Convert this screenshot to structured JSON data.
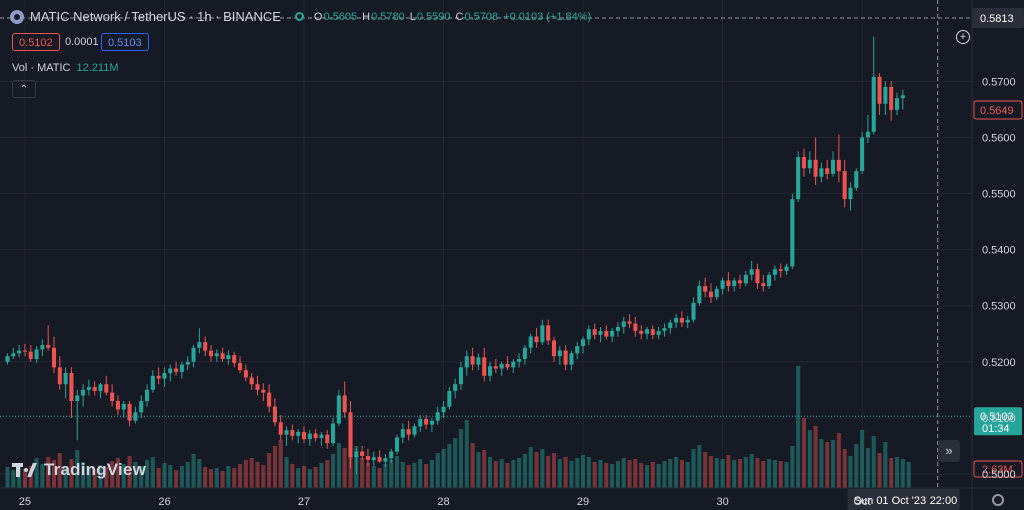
{
  "header": {
    "title": "MATIC Network / TetherUS · 1h · BINANCE",
    "ohlc": [
      {
        "label": "O",
        "value": "0.5605"
      },
      {
        "label": "H",
        "value": "0.5780"
      },
      {
        "label": "L",
        "value": "0.5590"
      },
      {
        "label": "C",
        "value": "0.5708"
      }
    ],
    "change": "+0.0103 (+1.84%)"
  },
  "trade": {
    "sell": "0.5102",
    "spread": "0.0001",
    "buy": "0.5103"
  },
  "volume": {
    "label": "Vol · MATIC",
    "value": "12.211M"
  },
  "collapse_icon": "chevron-up-icon",
  "brand": "TradingView",
  "chart_data": {
    "type": "candlestick",
    "symbol": "MATICUSDT",
    "interval": "1h",
    "exchange": "BINANCE",
    "ylim": [
      0.4975,
      0.5845
    ],
    "y_ticks": [
      "0.5000",
      "0.5100",
      "0.5200",
      "0.5300",
      "0.5400",
      "0.5500",
      "0.5600",
      "0.5700"
    ],
    "x_ticks": [
      {
        "label": "25",
        "hour": 3
      },
      {
        "label": "26",
        "hour": 27
      },
      {
        "label": "27",
        "hour": 51
      },
      {
        "label": "28",
        "hour": 75
      },
      {
        "label": "29",
        "hour": 99
      },
      {
        "label": "30",
        "hour": 123
      },
      {
        "label": "Oct",
        "hour": 147
      }
    ],
    "hours_shown": 166,
    "crosshair": {
      "price": "0.5813",
      "price_value": 0.5813,
      "time_label": "Sun 01 Oct '23",
      "time_hour": "22:00",
      "hour_index": 160
    },
    "last_price": {
      "label": "0.5649",
      "value": 0.5649
    },
    "current_price": {
      "label": "0.5103",
      "countdown": "01:34",
      "value": 0.5103
    },
    "volume_last": "2.63M",
    "volume_max": 12.2,
    "colors": {
      "up": "#26a69a",
      "down": "#ef5350",
      "bg": "#161a25",
      "grid": "#232632",
      "text": "#d1d4dc"
    },
    "ohlc": [
      [
        0.52,
        0.5215,
        0.5195,
        0.521
      ],
      [
        0.521,
        0.5225,
        0.5205,
        0.5215
      ],
      [
        0.5215,
        0.523,
        0.5208,
        0.522
      ],
      [
        0.522,
        0.5232,
        0.521,
        0.5218
      ],
      [
        0.5218,
        0.523,
        0.52,
        0.5205
      ],
      [
        0.5205,
        0.5228,
        0.5198,
        0.5222
      ],
      [
        0.5222,
        0.524,
        0.521,
        0.523
      ],
      [
        0.523,
        0.5265,
        0.522,
        0.5225
      ],
      [
        0.5225,
        0.5245,
        0.518,
        0.519
      ],
      [
        0.519,
        0.521,
        0.515,
        0.516
      ],
      [
        0.516,
        0.519,
        0.5135,
        0.518
      ],
      [
        0.518,
        0.519,
        0.51,
        0.513
      ],
      [
        0.513,
        0.515,
        0.506,
        0.514
      ],
      [
        0.514,
        0.516,
        0.512,
        0.515
      ],
      [
        0.515,
        0.5168,
        0.514,
        0.5155
      ],
      [
        0.5155,
        0.5165,
        0.514,
        0.5148
      ],
      [
        0.5148,
        0.5162,
        0.5135,
        0.516
      ],
      [
        0.516,
        0.5175,
        0.514,
        0.5145
      ],
      [
        0.5145,
        0.516,
        0.512,
        0.513
      ],
      [
        0.513,
        0.514,
        0.5105,
        0.5115
      ],
      [
        0.5115,
        0.513,
        0.51,
        0.5125
      ],
      [
        0.5125,
        0.513,
        0.5085,
        0.5095
      ],
      [
        0.5095,
        0.512,
        0.509,
        0.511
      ],
      [
        0.511,
        0.514,
        0.51,
        0.513
      ],
      [
        0.513,
        0.516,
        0.512,
        0.515
      ],
      [
        0.515,
        0.5185,
        0.5145,
        0.5175
      ],
      [
        0.5175,
        0.519,
        0.516,
        0.517
      ],
      [
        0.517,
        0.519,
        0.5155,
        0.518
      ],
      [
        0.518,
        0.5195,
        0.5165,
        0.5188
      ],
      [
        0.5188,
        0.52,
        0.5175,
        0.5182
      ],
      [
        0.5182,
        0.52,
        0.517,
        0.5195
      ],
      [
        0.5195,
        0.521,
        0.5185,
        0.52
      ],
      [
        0.52,
        0.523,
        0.519,
        0.5225
      ],
      [
        0.5225,
        0.526,
        0.5215,
        0.5235
      ],
      [
        0.5235,
        0.5245,
        0.521,
        0.522
      ],
      [
        0.522,
        0.523,
        0.52,
        0.521
      ],
      [
        0.521,
        0.5222,
        0.52,
        0.5215
      ],
      [
        0.5215,
        0.5225,
        0.52,
        0.5205
      ],
      [
        0.5205,
        0.522,
        0.5195,
        0.5212
      ],
      [
        0.5212,
        0.5218,
        0.519,
        0.5198
      ],
      [
        0.5198,
        0.521,
        0.518,
        0.5185
      ],
      [
        0.5185,
        0.5195,
        0.5165,
        0.5172
      ],
      [
        0.5172,
        0.518,
        0.515,
        0.516
      ],
      [
        0.516,
        0.5175,
        0.514,
        0.515
      ],
      [
        0.515,
        0.5162,
        0.513,
        0.5145
      ],
      [
        0.5145,
        0.516,
        0.511,
        0.512
      ],
      [
        0.512,
        0.5135,
        0.5085,
        0.5092
      ],
      [
        0.5092,
        0.5105,
        0.506,
        0.507
      ],
      [
        0.507,
        0.5085,
        0.505,
        0.5078
      ],
      [
        0.5078,
        0.5088,
        0.506,
        0.5068
      ],
      [
        0.5068,
        0.508,
        0.5055,
        0.5075
      ],
      [
        0.5075,
        0.5085,
        0.5055,
        0.5062
      ],
      [
        0.5062,
        0.5078,
        0.505,
        0.5072
      ],
      [
        0.5072,
        0.508,
        0.5058,
        0.5064
      ],
      [
        0.5064,
        0.5075,
        0.505,
        0.507
      ],
      [
        0.507,
        0.5078,
        0.5045,
        0.5055
      ],
      [
        0.5055,
        0.51,
        0.505,
        0.509
      ],
      [
        0.509,
        0.515,
        0.5085,
        0.514
      ],
      [
        0.514,
        0.5165,
        0.51,
        0.511
      ],
      [
        0.511,
        0.513,
        0.501,
        0.503
      ],
      [
        0.503,
        0.5045,
        0.5,
        0.504
      ],
      [
        0.504,
        0.505,
        0.5025,
        0.5032
      ],
      [
        0.5032,
        0.5045,
        0.5015,
        0.5025
      ],
      [
        0.5025,
        0.504,
        0.5015,
        0.503
      ],
      [
        0.503,
        0.5042,
        0.502,
        0.5022
      ],
      [
        0.5022,
        0.5035,
        0.5012,
        0.5028
      ],
      [
        0.5028,
        0.5045,
        0.502,
        0.504
      ],
      [
        0.504,
        0.507,
        0.5035,
        0.5065
      ],
      [
        0.5065,
        0.509,
        0.5055,
        0.508
      ],
      [
        0.508,
        0.5095,
        0.506,
        0.507
      ],
      [
        0.507,
        0.509,
        0.5065,
        0.5085
      ],
      [
        0.5085,
        0.5105,
        0.5075,
        0.5098
      ],
      [
        0.5098,
        0.5105,
        0.508,
        0.5088
      ],
      [
        0.5088,
        0.51,
        0.5075,
        0.5095
      ],
      [
        0.5095,
        0.512,
        0.5088,
        0.511
      ],
      [
        0.511,
        0.513,
        0.51,
        0.512
      ],
      [
        0.512,
        0.5155,
        0.5115,
        0.5148
      ],
      [
        0.5148,
        0.517,
        0.5135,
        0.516
      ],
      [
        0.516,
        0.52,
        0.515,
        0.519
      ],
      [
        0.519,
        0.522,
        0.5175,
        0.521
      ],
      [
        0.521,
        0.5225,
        0.5185,
        0.5195
      ],
      [
        0.5195,
        0.5215,
        0.5185,
        0.5208
      ],
      [
        0.5208,
        0.5225,
        0.5165,
        0.5175
      ],
      [
        0.5175,
        0.52,
        0.5165,
        0.5192
      ],
      [
        0.5192,
        0.5205,
        0.518,
        0.5188
      ],
      [
        0.5188,
        0.52,
        0.5175,
        0.5196
      ],
      [
        0.5196,
        0.521,
        0.5185,
        0.519
      ],
      [
        0.519,
        0.5205,
        0.518,
        0.52
      ],
      [
        0.52,
        0.5215,
        0.519,
        0.5205
      ],
      [
        0.5205,
        0.523,
        0.5195,
        0.5225
      ],
      [
        0.5225,
        0.525,
        0.5215,
        0.5245
      ],
      [
        0.5245,
        0.526,
        0.5225,
        0.5235
      ],
      [
        0.5235,
        0.5275,
        0.523,
        0.5265
      ],
      [
        0.5265,
        0.5275,
        0.523,
        0.5238
      ],
      [
        0.5238,
        0.5245,
        0.52,
        0.521
      ],
      [
        0.521,
        0.5228,
        0.5195,
        0.522
      ],
      [
        0.522,
        0.523,
        0.5185,
        0.5195
      ],
      [
        0.5195,
        0.522,
        0.5185,
        0.5215
      ],
      [
        0.5215,
        0.5235,
        0.5205,
        0.5228
      ],
      [
        0.5228,
        0.5245,
        0.5215,
        0.524
      ],
      [
        0.524,
        0.5265,
        0.523,
        0.5258
      ],
      [
        0.5258,
        0.5268,
        0.524,
        0.5248
      ],
      [
        0.5248,
        0.5262,
        0.5235,
        0.5255
      ],
      [
        0.5255,
        0.5265,
        0.524,
        0.5245
      ],
      [
        0.5245,
        0.526,
        0.5235,
        0.5255
      ],
      [
        0.5255,
        0.527,
        0.5245,
        0.5262
      ],
      [
        0.5262,
        0.528,
        0.525,
        0.5272
      ],
      [
        0.5272,
        0.5285,
        0.526,
        0.5268
      ],
      [
        0.5268,
        0.528,
        0.5245,
        0.5255
      ],
      [
        0.5255,
        0.5265,
        0.524,
        0.525
      ],
      [
        0.525,
        0.5262,
        0.524,
        0.5258
      ],
      [
        0.5258,
        0.5265,
        0.524,
        0.5248
      ],
      [
        0.5248,
        0.5262,
        0.524,
        0.5255
      ],
      [
        0.5255,
        0.5268,
        0.5245,
        0.526
      ],
      [
        0.526,
        0.5275,
        0.525,
        0.527
      ],
      [
        0.527,
        0.5285,
        0.526,
        0.5278
      ],
      [
        0.5278,
        0.529,
        0.5262,
        0.527
      ],
      [
        0.527,
        0.5282,
        0.526,
        0.5275
      ],
      [
        0.5275,
        0.5315,
        0.527,
        0.5305
      ],
      [
        0.5305,
        0.5345,
        0.53,
        0.5335
      ],
      [
        0.5335,
        0.535,
        0.5315,
        0.5325
      ],
      [
        0.5325,
        0.534,
        0.5305,
        0.5315
      ],
      [
        0.5315,
        0.5335,
        0.531,
        0.533
      ],
      [
        0.533,
        0.535,
        0.532,
        0.5345
      ],
      [
        0.5345,
        0.536,
        0.5325,
        0.5335
      ],
      [
        0.5335,
        0.535,
        0.5325,
        0.5345
      ],
      [
        0.5345,
        0.5355,
        0.533,
        0.534
      ],
      [
        0.534,
        0.5362,
        0.5335,
        0.5355
      ],
      [
        0.5355,
        0.538,
        0.5345,
        0.5365
      ],
      [
        0.5365,
        0.5375,
        0.533,
        0.534
      ],
      [
        0.534,
        0.5355,
        0.5325,
        0.5335
      ],
      [
        0.5335,
        0.536,
        0.533,
        0.5355
      ],
      [
        0.5355,
        0.5372,
        0.5345,
        0.5365
      ],
      [
        0.5365,
        0.5375,
        0.535,
        0.5362
      ],
      [
        0.5362,
        0.5375,
        0.5355,
        0.537
      ],
      [
        0.537,
        0.55,
        0.5365,
        0.549
      ],
      [
        0.549,
        0.5575,
        0.5485,
        0.5565
      ],
      [
        0.5565,
        0.558,
        0.553,
        0.5545
      ],
      [
        0.5545,
        0.5575,
        0.5535,
        0.556
      ],
      [
        0.556,
        0.56,
        0.5515,
        0.553
      ],
      [
        0.553,
        0.5555,
        0.552,
        0.5545
      ],
      [
        0.5545,
        0.556,
        0.5525,
        0.5535
      ],
      [
        0.5535,
        0.5575,
        0.553,
        0.556
      ],
      [
        0.556,
        0.5605,
        0.552,
        0.554
      ],
      [
        0.554,
        0.556,
        0.5475,
        0.549
      ],
      [
        0.549,
        0.552,
        0.547,
        0.551
      ],
      [
        0.551,
        0.5545,
        0.5505,
        0.554
      ],
      [
        0.554,
        0.561,
        0.5535,
        0.56
      ],
      [
        0.56,
        0.564,
        0.559,
        0.561
      ],
      [
        0.561,
        0.578,
        0.5605,
        0.5708
      ],
      [
        0.5708,
        0.5715,
        0.564,
        0.566
      ],
      [
        0.566,
        0.57,
        0.564,
        0.569
      ],
      [
        0.569,
        0.57,
        0.563,
        0.5649
      ],
      [
        0.5649,
        0.568,
        0.564,
        0.567
      ],
      [
        0.567,
        0.5685,
        0.565,
        0.5675
      ]
    ],
    "volumes": [
      2.1,
      1.8,
      2.5,
      1.9,
      2.2,
      3.0,
      2.4,
      3.1,
      2.8,
      3.5,
      2.2,
      2.9,
      3.8,
      2.6,
      2.0,
      1.9,
      2.3,
      2.1,
      2.7,
      3.0,
      2.4,
      3.2,
      2.6,
      2.2,
      2.8,
      3.1,
      2.0,
      2.5,
      2.3,
      1.8,
      2.2,
      2.6,
      3.4,
      2.9,
      2.1,
      1.9,
      2.0,
      1.7,
      2.2,
      2.0,
      2.4,
      2.8,
      3.0,
      2.6,
      2.3,
      3.5,
      4.2,
      4.8,
      3.1,
      2.4,
      2.0,
      2.2,
      1.9,
      2.1,
      2.5,
      2.8,
      3.4,
      4.5,
      4.0,
      6.5,
      4.2,
      3.0,
      2.5,
      2.2,
      2.0,
      2.4,
      2.8,
      3.2,
      2.6,
      2.3,
      2.5,
      2.9,
      2.4,
      2.8,
      3.5,
      3.9,
      4.4,
      5.0,
      5.9,
      6.8,
      4.5,
      3.6,
      3.8,
      3.1,
      2.7,
      2.9,
      2.5,
      2.8,
      3.0,
      3.4,
      4.1,
      3.6,
      3.9,
      3.2,
      3.5,
      2.9,
      3.1,
      2.7,
      3.0,
      3.3,
      3.1,
      2.6,
      2.8,
      2.5,
      2.4,
      2.7,
      3.0,
      2.8,
      2.9,
      2.5,
      2.3,
      2.6,
      2.4,
      2.7,
      2.9,
      3.1,
      2.8,
      2.6,
      3.9,
      4.3,
      3.6,
      3.2,
      3.0,
      2.9,
      3.3,
      2.8,
      2.9,
      3.1,
      3.4,
      3.0,
      2.7,
      2.9,
      2.8,
      2.7,
      2.6,
      4.2,
      12.2,
      7.0,
      5.8,
      6.2,
      4.9,
      4.6,
      4.8,
      5.5,
      3.9,
      3.2,
      4.4,
      5.8,
      4.0,
      5.2,
      3.5,
      4.6,
      3.0,
      3.1,
      2.9,
      2.6
    ],
    "volume_up": [
      1,
      1,
      1,
      0,
      0,
      1,
      1,
      0,
      0,
      0,
      1,
      0,
      1,
      1,
      1,
      0,
      1,
      0,
      0,
      0,
      1,
      0,
      1,
      1,
      1,
      1,
      0,
      1,
      1,
      0,
      1,
      1,
      1,
      1,
      0,
      0,
      1,
      0,
      1,
      0,
      0,
      0,
      0,
      0,
      0,
      0,
      0,
      0,
      1,
      0,
      1,
      0,
      1,
      0,
      1,
      0,
      1,
      1,
      0,
      0,
      1,
      0,
      0,
      1,
      0,
      1,
      1,
      1,
      1,
      0,
      1,
      1,
      0,
      1,
      1,
      1,
      1,
      1,
      1,
      1,
      0,
      1,
      0,
      1,
      0,
      1,
      0,
      1,
      1,
      1,
      1,
      0,
      1,
      0,
      0,
      1,
      0,
      1,
      1,
      1,
      1,
      0,
      1,
      0,
      1,
      1,
      1,
      0,
      0,
      0,
      1,
      0,
      1,
      1,
      1,
      1,
      0,
      1,
      1,
      1,
      0,
      0,
      1,
      1,
      0,
      1,
      0,
      1,
      1,
      0,
      0,
      1,
      1,
      0,
      1,
      1,
      1,
      0,
      1,
      0,
      1,
      0,
      1,
      0,
      0,
      1,
      1,
      1,
      1,
      1,
      0,
      1,
      0,
      1,
      1,
      1
    ]
  }
}
